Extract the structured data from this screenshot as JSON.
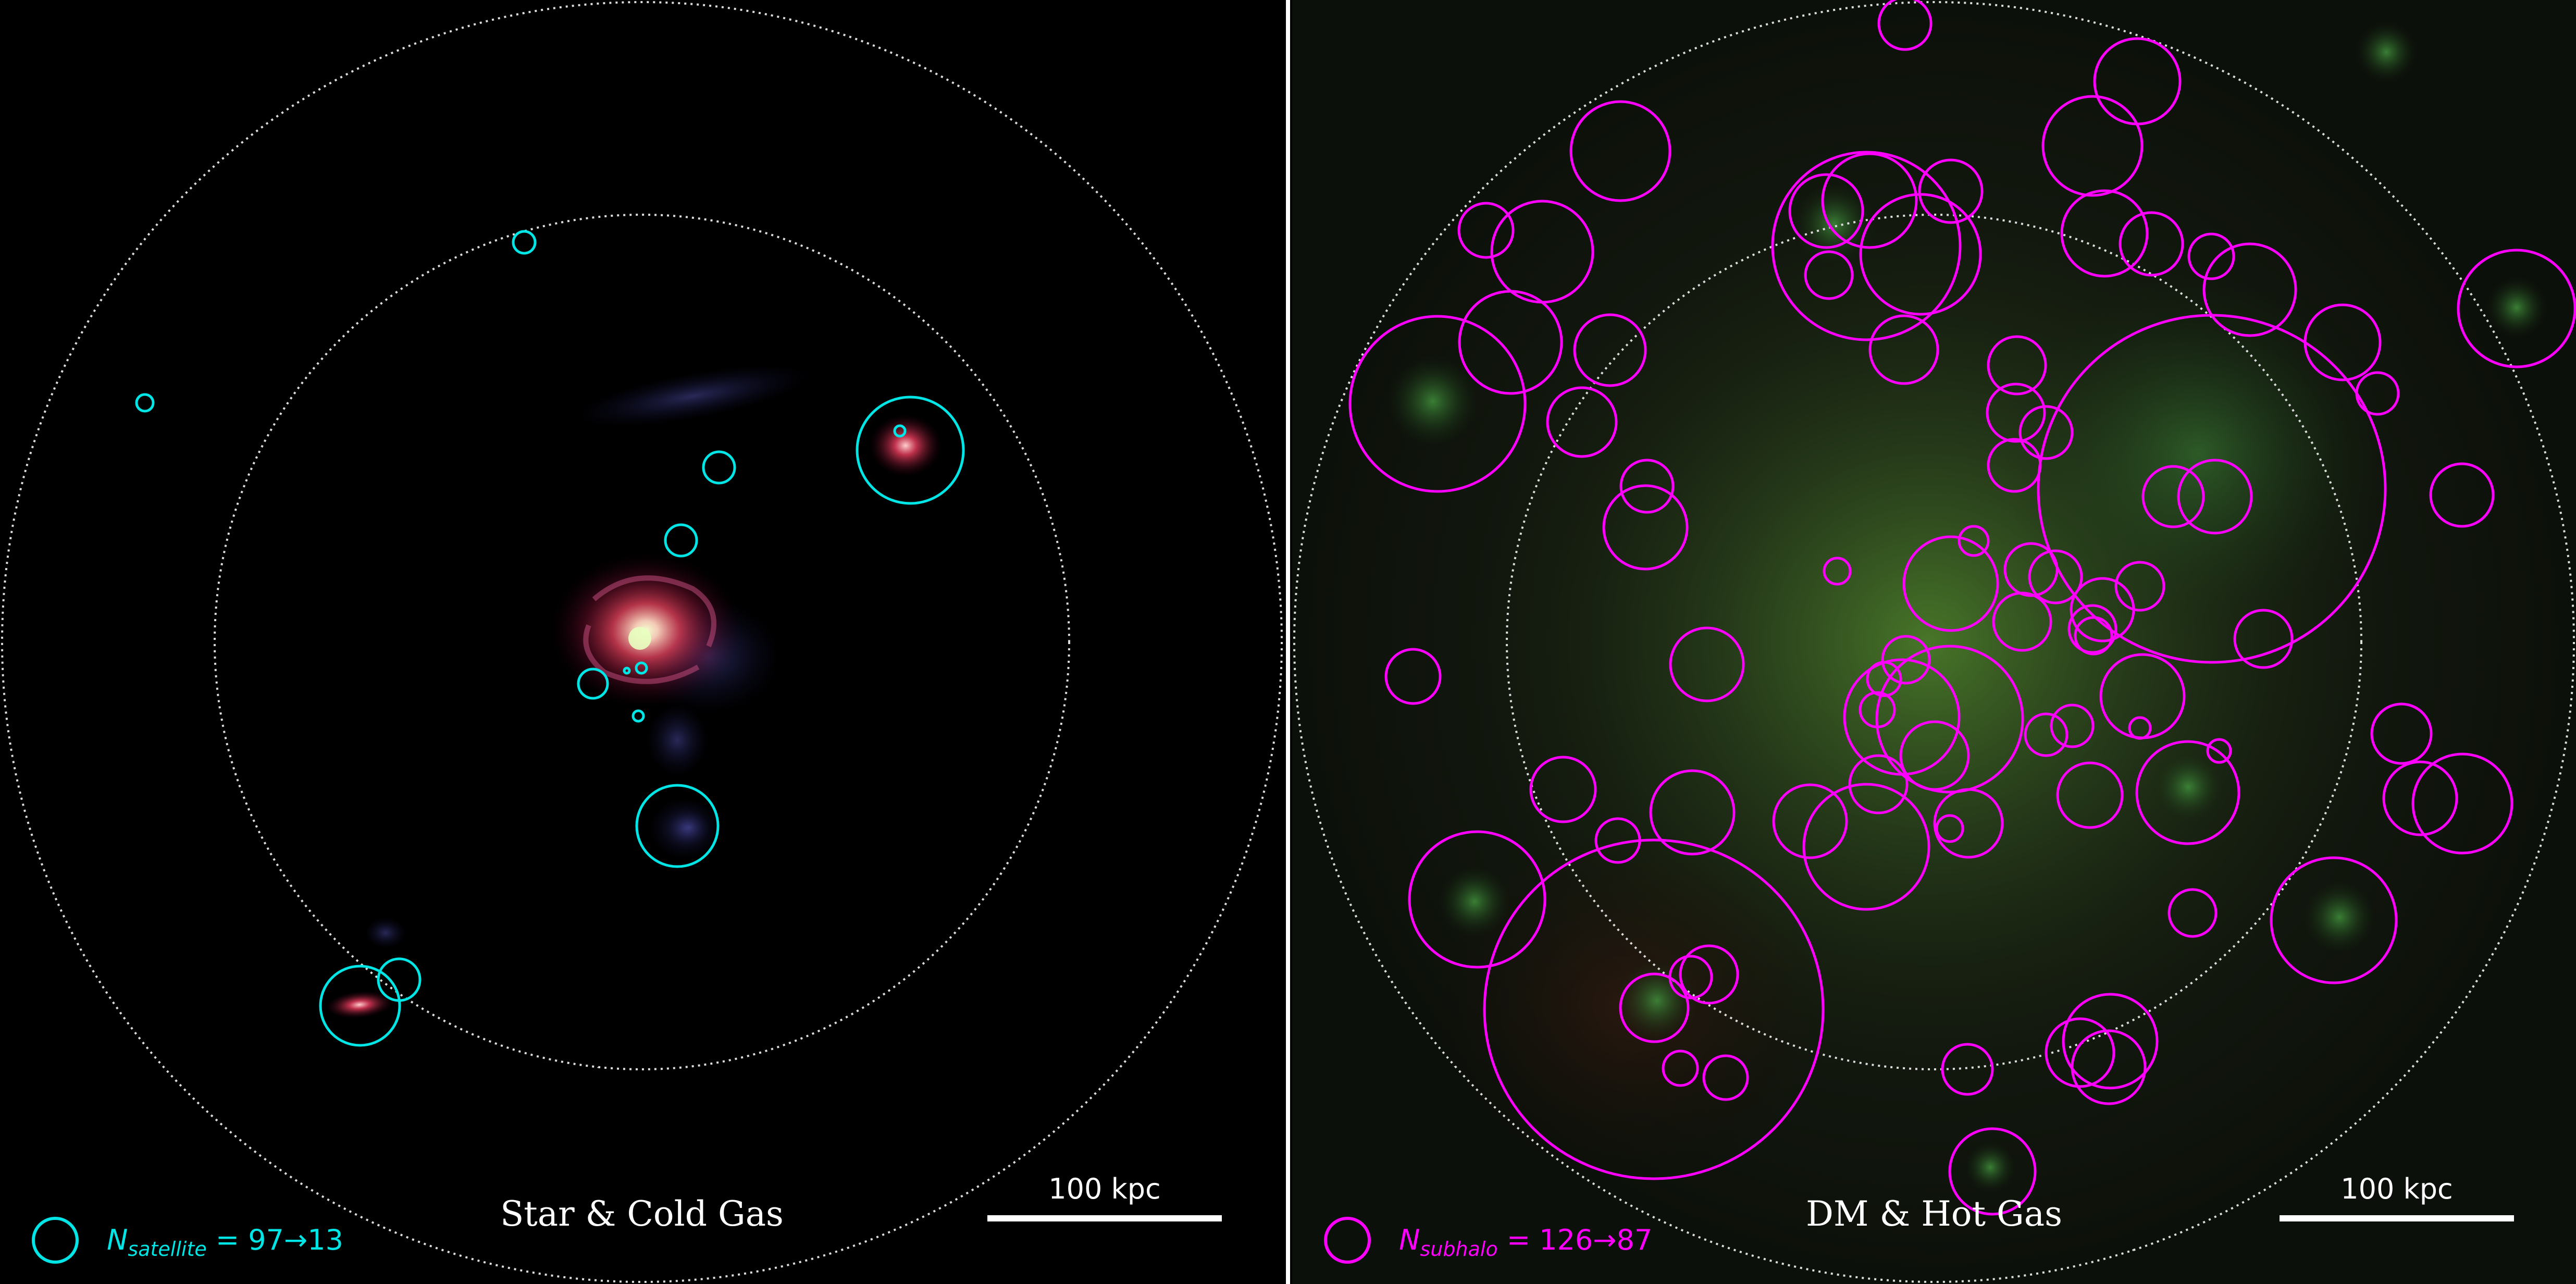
{
  "panels": [
    {
      "id": "left",
      "title": "Star & Cold Gas",
      "scalebar_label": "100 kpc",
      "legend": {
        "symbol": "N",
        "subscript": "satellite",
        "value_text": " = 97→13"
      },
      "circle_color": "#00e5e5"
    },
    {
      "id": "right",
      "title": "DM & Hot Gas",
      "scalebar_label": "100 kpc",
      "legend": {
        "symbol": "N",
        "subscript": "subhalo",
        "value_text": " = 126→87"
      },
      "circle_color": "#ff00ff"
    }
  ],
  "colors": {
    "background": "#000000",
    "divider": "#ffffff",
    "guide_ring": "#dddddd",
    "satellite": "#00e5e5",
    "subhalo": "#ff00ff",
    "dm_glow": "#3a7a2a",
    "star_glow": "#ff3a5a"
  }
}
